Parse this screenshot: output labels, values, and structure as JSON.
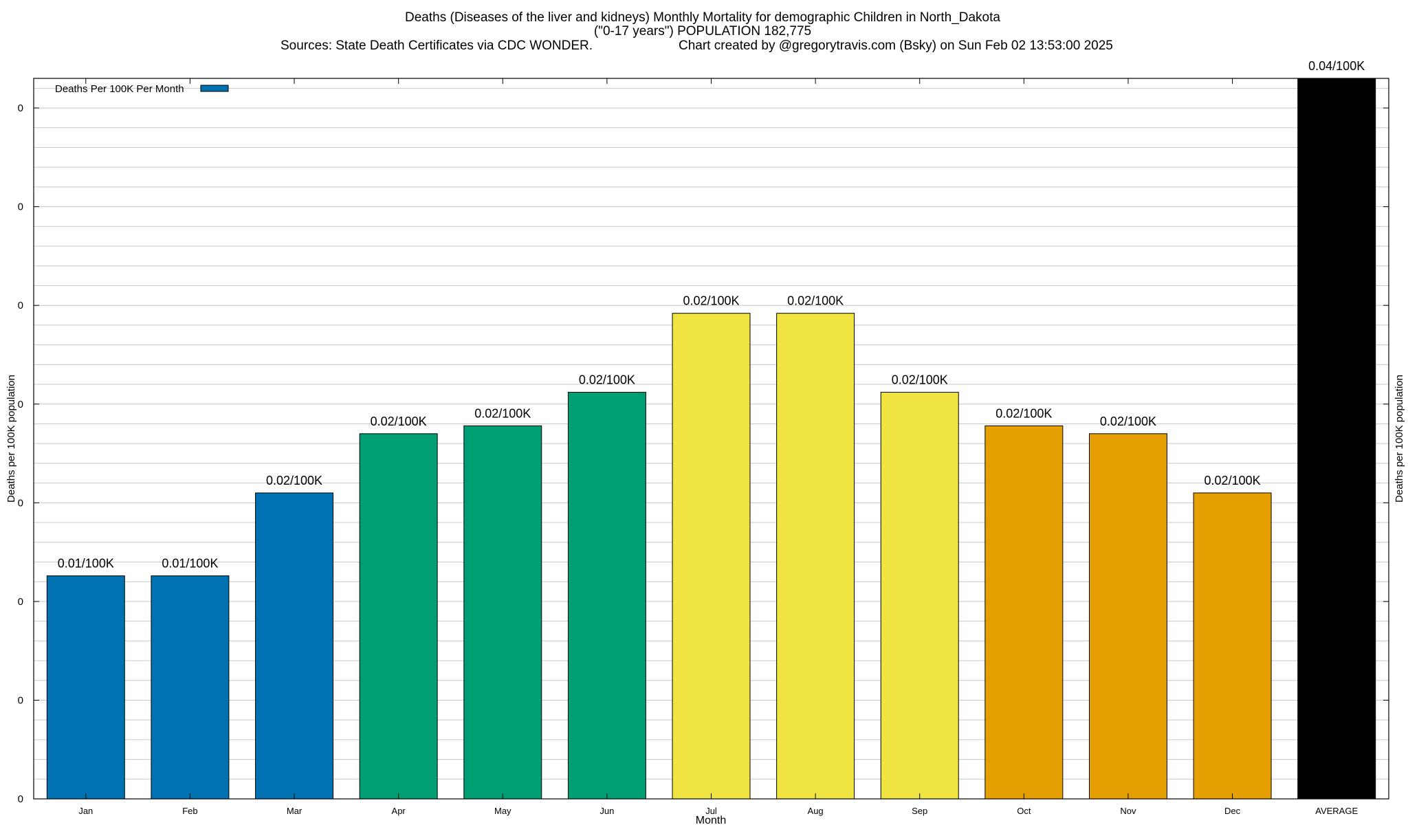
{
  "chart_data": {
    "type": "bar",
    "title_lines": [
      "Deaths (Diseases of the liver and kidneys) Monthly Mortality for demographic Children in North_Dakota",
      "(\"0-17 years\") POPULATION 182,775"
    ],
    "sources": "Sources: State Death Certificates via CDC WONDER.",
    "credit": "Chart created by @gregorytravis.com (Bsky) on Sun Feb 02 13:53:00 2025",
    "xlabel": "Month",
    "ylabel": "Deaths per 100K population",
    "ylabel_right": "Deaths per 100K population",
    "legend": {
      "label": "Deaths Per 100K Per Month",
      "position": "top-left",
      "color": "#0072b2"
    },
    "categories": [
      "Jan",
      "Feb",
      "Mar",
      "Apr",
      "May",
      "Jun",
      "Jul",
      "Aug",
      "Sep",
      "Oct",
      "Nov",
      "Dec",
      "AVERAGE"
    ],
    "values": [
      0.0113,
      0.0113,
      0.0155,
      0.0185,
      0.0189,
      0.0206,
      0.0246,
      0.0246,
      0.0206,
      0.0189,
      0.0185,
      0.0155,
      0.0365
    ],
    "data_labels": [
      "0.01/100K",
      "0.01/100K",
      "0.02/100K",
      "0.02/100K",
      "0.02/100K",
      "0.02/100K",
      "0.02/100K",
      "0.02/100K",
      "0.02/100K",
      "0.02/100K",
      "0.02/100K",
      "0.02/100K",
      "0.04/100K"
    ],
    "colors": [
      "#0072b2",
      "#0072b2",
      "#0072b2",
      "#009e73",
      "#009e73",
      "#009e73",
      "#f0e442",
      "#f0e442",
      "#f0e442",
      "#e69f00",
      "#e69f00",
      "#e69f00",
      "#000000"
    ],
    "yticks": [
      0,
      0.005,
      0.01,
      0.015,
      0.02,
      0.025,
      0.03,
      0.035
    ],
    "ytick_labels": [
      "0",
      "0",
      "0",
      "0",
      "0",
      "0",
      "0",
      "0"
    ],
    "ylim": [
      0,
      0.0365
    ],
    "grid": true
  }
}
